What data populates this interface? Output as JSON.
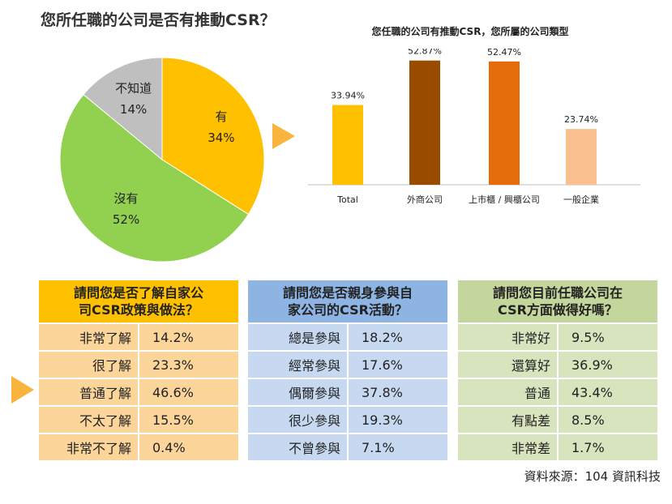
{
  "pie_title": "您所任職的公司是否有推動CSR？",
  "bar_title": "您任職的公司有推動CSR，您所屬的公司類型",
  "source": "資料來源：104 資訊科技",
  "colors": {
    "pie_yes": "#ffc000",
    "pie_no": "#92d050",
    "pie_unknown": "#bfbfbf",
    "table1_head": "#ffc000",
    "table1_body": "#fcd59a",
    "table2_head": "#8eb4e3",
    "table2_body": "#c6d9f1",
    "table3_head": "#c3d69b",
    "table3_body": "#d7e4bd",
    "arrow": "#f8b43c"
  },
  "chart_data": [
    {
      "type": "pie",
      "slices": [
        {
          "label": "有",
          "value": 34,
          "value_label": "34%",
          "color": "#ffc000"
        },
        {
          "label": "沒有",
          "value": 52,
          "value_label": "52%",
          "color": "#92d050"
        },
        {
          "label": "不知道",
          "value": 14,
          "value_label": "14%",
          "color": "#bfbfbf"
        }
      ]
    },
    {
      "type": "bar",
      "categories": [
        "Total",
        "外商公司",
        "上市櫃 / 興櫃公司",
        "一般企業"
      ],
      "values": [
        33.94,
        52.87,
        52.47,
        23.74
      ],
      "value_labels": [
        "33.94%",
        "52.87%",
        "52.47%",
        "23.74%"
      ],
      "colors": [
        "#ffc000",
        "#994c00",
        "#e46c0a",
        "#fac090"
      ],
      "ylim": [
        0,
        60
      ]
    },
    {
      "type": "table",
      "header": "請問您是否了解自家公司CSR政策與做法？",
      "rows": [
        {
          "label": "非常了解",
          "value": "14.2%"
        },
        {
          "label": "很了解",
          "value": "23.3%"
        },
        {
          "label": "普通了解",
          "value": "46.6%"
        },
        {
          "label": "不太了解",
          "value": "15.5%"
        },
        {
          "label": "非常不了解",
          "value": "0.4%"
        }
      ]
    },
    {
      "type": "table",
      "header": "請問您是否親身參與自家公司的CSR活動？",
      "rows": [
        {
          "label": "總是參與",
          "value": "18.2%"
        },
        {
          "label": "經常參與",
          "value": "17.6%"
        },
        {
          "label": "偶爾參與",
          "value": "37.8%"
        },
        {
          "label": "很少參與",
          "value": "19.3%"
        },
        {
          "label": "不曾參與",
          "value": "7.1%"
        }
      ]
    },
    {
      "type": "table",
      "header": "請問您目前任職公司在CSR方面做得好嗎？",
      "rows": [
        {
          "label": "非常好",
          "value": "9.5%"
        },
        {
          "label": "還算好",
          "value": "36.9%"
        },
        {
          "label": "普通",
          "value": "43.4%"
        },
        {
          "label": "有點差",
          "value": "8.5%"
        },
        {
          "label": "非常差",
          "value": "1.7%"
        }
      ]
    }
  ]
}
